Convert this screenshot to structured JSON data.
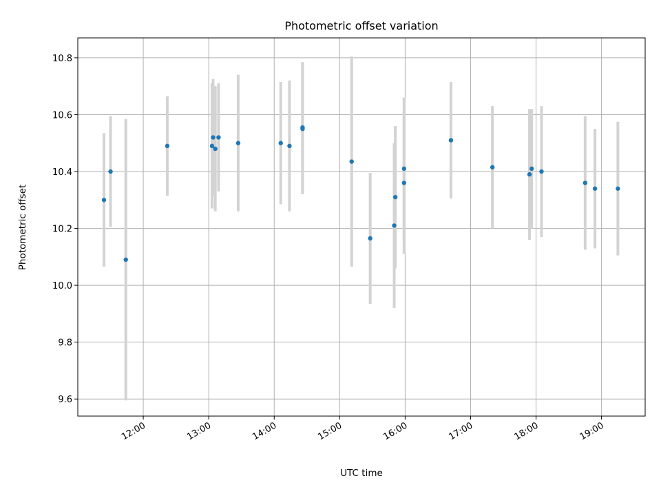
{
  "chart_data": {
    "type": "scatter",
    "title": "Photometric offset variation",
    "xlabel": "UTC time",
    "ylabel": "Photometric offset",
    "x_is_time": true,
    "xlim": [
      "11:00",
      "19:40"
    ],
    "ylim": [
      9.54,
      10.87
    ],
    "x_ticks": [
      "12:00",
      "13:00",
      "14:00",
      "15:00",
      "16:00",
      "17:00",
      "18:00",
      "19:00"
    ],
    "y_ticks": [
      "9.6",
      "9.8",
      "10.0",
      "10.2",
      "10.4",
      "10.6",
      "10.8"
    ],
    "grid": true,
    "colors": {
      "point": "#1f77b4",
      "errorbar": "#d3d3d3",
      "grid": "#b0b0b0"
    },
    "points": [
      {
        "x": "11:24",
        "y": 10.3,
        "yerr": 0.235
      },
      {
        "x": "11:30",
        "y": 10.4,
        "yerr": 0.195
      },
      {
        "x": "11:44",
        "y": 10.09,
        "yerr": 0.495
      },
      {
        "x": "12:22",
        "y": 10.49,
        "yerr": 0.175
      },
      {
        "x": "13:03",
        "y": 10.49,
        "yerr": 0.22
      },
      {
        "x": "13:04",
        "y": 10.52,
        "yerr": 0.205
      },
      {
        "x": "13:06",
        "y": 10.48,
        "yerr": 0.22
      },
      {
        "x": "13:09",
        "y": 10.52,
        "yerr": 0.19
      },
      {
        "x": "13:27",
        "y": 10.5,
        "yerr": 0.24
      },
      {
        "x": "14:06",
        "y": 10.5,
        "yerr": 0.215
      },
      {
        "x": "14:14",
        "y": 10.49,
        "yerr": 0.23
      },
      {
        "x": "14:26",
        "y": 10.555,
        "yerr": 0.23
      },
      {
        "x": "14:26",
        "y": 10.55,
        "yerr": 0.23
      },
      {
        "x": "15:11",
        "y": 10.435,
        "yerr": 0.37
      },
      {
        "x": "15:28",
        "y": 10.165,
        "yerr": 0.23
      },
      {
        "x": "15:50",
        "y": 10.21,
        "yerr": 0.29
      },
      {
        "x": "15:51",
        "y": 10.31,
        "yerr": 0.25
      },
      {
        "x": "15:59",
        "y": 10.41,
        "yerr": 0.25
      },
      {
        "x": "15:59",
        "y": 10.36,
        "yerr": 0.25
      },
      {
        "x": "16:42",
        "y": 10.51,
        "yerr": 0.205
      },
      {
        "x": "17:20",
        "y": 10.415,
        "yerr": 0.215
      },
      {
        "x": "17:54",
        "y": 10.39,
        "yerr": 0.23
      },
      {
        "x": "17:56",
        "y": 10.41,
        "yerr": 0.21
      },
      {
        "x": "18:05",
        "y": 10.4,
        "yerr": 0.23
      },
      {
        "x": "18:45",
        "y": 10.36,
        "yerr": 0.235
      },
      {
        "x": "18:54",
        "y": 10.34,
        "yerr": 0.21
      },
      {
        "x": "19:15",
        "y": 10.34,
        "yerr": 0.235
      }
    ]
  }
}
